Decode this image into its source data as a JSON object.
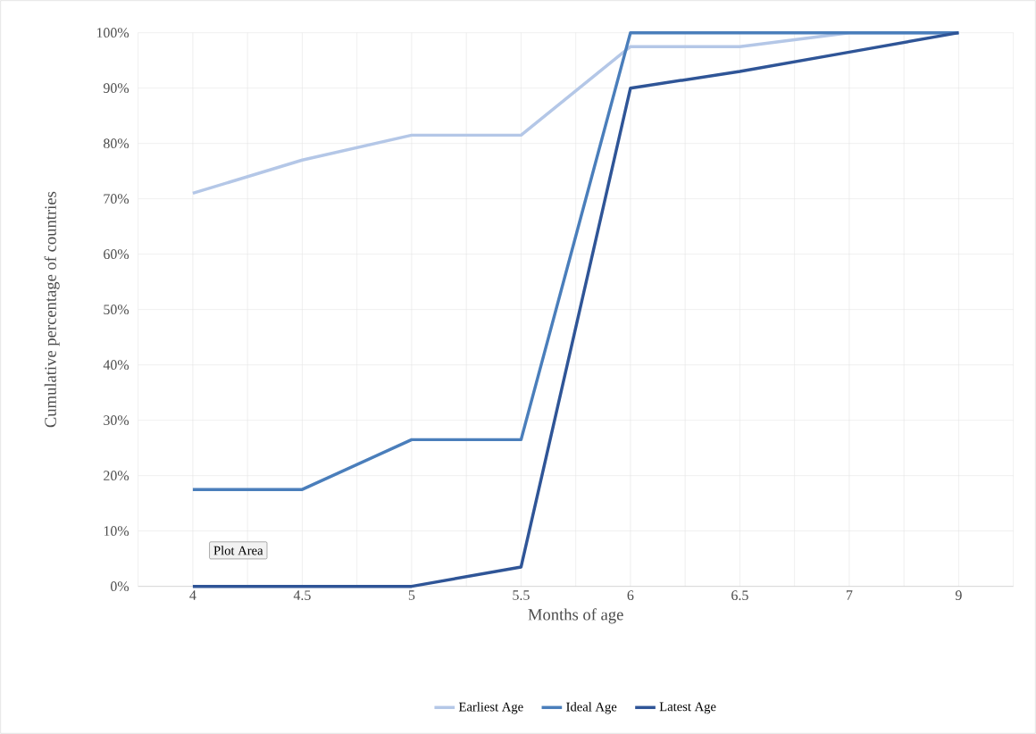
{
  "chart_data": {
    "type": "line",
    "xlabel": "Months of age",
    "ylabel": "Cumulative percentage of countries",
    "categories": [
      "4",
      "4.5",
      "5",
      "5.5",
      "6",
      "6.5",
      "7",
      "9"
    ],
    "series": [
      {
        "name": "Earliest Age",
        "color": "#b4c7e7",
        "values": [
          71,
          77,
          81.5,
          81.5,
          97.5,
          97.5,
          100,
          100
        ]
      },
      {
        "name": "Ideal Age",
        "color": "#4a7ebb",
        "values": [
          17.5,
          17.5,
          26.5,
          26.5,
          100,
          100,
          100,
          100
        ]
      },
      {
        "name": "Latest Age",
        "color": "#2f5597",
        "values": [
          0,
          0,
          0,
          3.5,
          90,
          93,
          96.5,
          100
        ]
      }
    ],
    "ylim": [
      0,
      100
    ],
    "yticks": [
      {
        "value": 0,
        "label": "0%"
      },
      {
        "value": 10,
        "label": "10%"
      },
      {
        "value": 20,
        "label": "20%"
      },
      {
        "value": 30,
        "label": "30%"
      },
      {
        "value": 40,
        "label": "40%"
      },
      {
        "value": 50,
        "label": "50%"
      },
      {
        "value": 60,
        "label": "60%"
      },
      {
        "value": 70,
        "label": "70%"
      },
      {
        "value": 80,
        "label": "80%"
      },
      {
        "value": 90,
        "label": "90%"
      },
      {
        "value": 100,
        "label": "100%"
      }
    ],
    "grid": true,
    "legend": "bottom",
    "marker": "none",
    "line_style": "solid",
    "annotations": [
      "Plot Area"
    ]
  }
}
